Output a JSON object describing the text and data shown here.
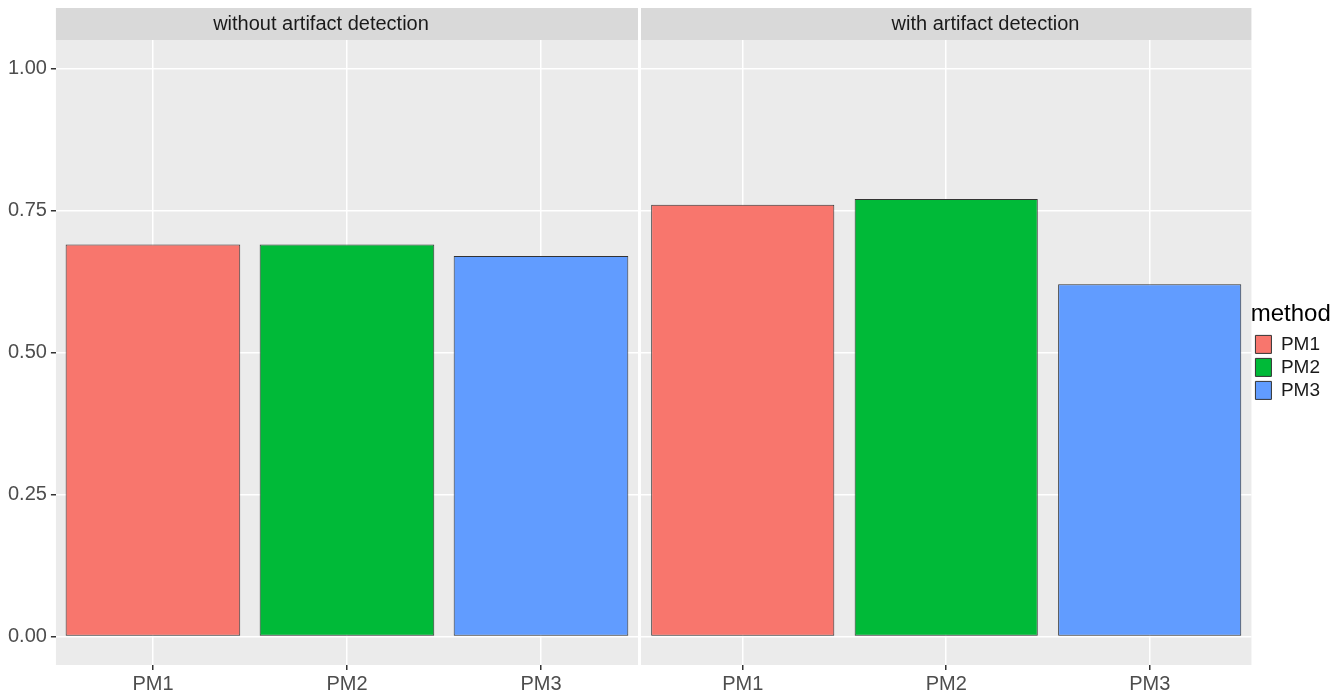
{
  "chart_data": [
    {
      "type": "bar",
      "title": "without artifact detection",
      "categories": [
        "PM1",
        "PM2",
        "PM3"
      ],
      "series": [
        {
          "color": "#f8766d",
          "values": [
            0.69,
            null,
            null
          ]
        },
        {
          "color": "#00ba38",
          "values": [
            null,
            0.69,
            null
          ]
        },
        {
          "color": "#619cff",
          "values": [
            null,
            null,
            0.67
          ]
        }
      ],
      "ylim": [
        -0.05,
        1.05
      ],
      "yticks": [
        {
          "value": 0,
          "label": "0.00"
        },
        {
          "value": 0.25,
          "label": "0.25"
        },
        {
          "value": 0.5,
          "label": "0.50"
        },
        {
          "value": 0.75,
          "label": "0.75"
        },
        {
          "value": 1,
          "label": "1.00"
        }
      ],
      "grid": true
    },
    {
      "type": "bar",
      "title": "with artifact detection",
      "categories": [
        "PM1",
        "PM2",
        "PM3"
      ],
      "series": [
        {
          "name": "PM1",
          "color": "#f8766d",
          "values": [
            0.76,
            null,
            null
          ]
        },
        {
          "name": "PM2",
          "color": "#00ba38",
          "values": [
            null,
            0.77,
            null
          ]
        },
        {
          "name": "PM3",
          "color": "#619cff",
          "values": [
            null,
            null,
            0.62
          ]
        }
      ],
      "ylim": [
        -0.05,
        1.05
      ],
      "yticks": [
        {
          "value": 0,
          "label": null
        },
        {
          "value": 0.25,
          "label": null
        },
        {
          "value": 0.5,
          "label": null
        },
        {
          "value": 0.75,
          "label": null
        },
        {
          "value": 1,
          "label": null
        }
      ],
      "grid": true,
      "tick_labels": "x",
      "legend": "right",
      "legend_title": "method"
    }
  ]
}
